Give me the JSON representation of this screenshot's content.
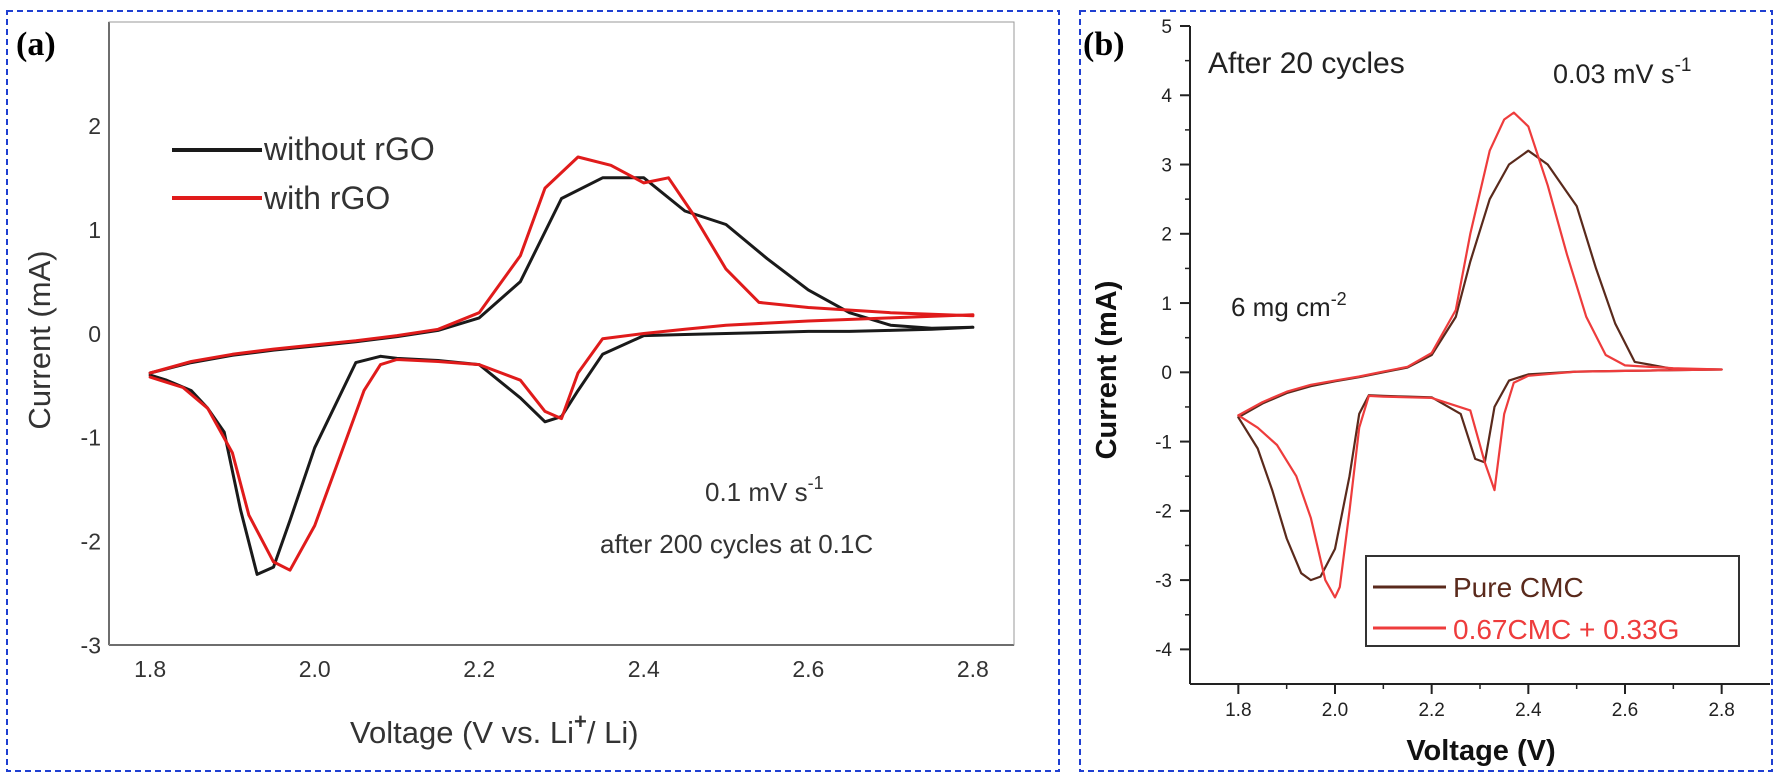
{
  "chart_data": [
    {
      "panel_label": "(a)",
      "type": "line",
      "xlabel_main": "Voltage (V vs. Li",
      "xlabel_sup": "+",
      "xlabel_tail": "/ Li)",
      "ylabel": "Current (mA)",
      "xlim": [
        1.75,
        2.85
      ],
      "ylim": [
        -3,
        3
      ],
      "xticks": [
        "1.8",
        "2.0",
        "2.2",
        "2.4",
        "2.6",
        "2.8"
      ],
      "yticks": [
        "-3",
        "-2",
        "-1",
        "0",
        "1",
        "2"
      ],
      "grid": false,
      "legend_position": "top-left",
      "annotations": {
        "rate_main": "0.1 mV s",
        "rate_sup": "-1",
        "cycles": "after 200 cycles at 0.1C"
      },
      "series": [
        {
          "name": "without rGO",
          "color": "#1a1a1a",
          "x": [
            1.8,
            1.85,
            1.9,
            1.95,
            2.0,
            2.05,
            2.1,
            2.15,
            2.2,
            2.25,
            2.3,
            2.35,
            2.4,
            2.45,
            2.5,
            2.55,
            2.6,
            2.65,
            2.7,
            2.75,
            2.8,
            2.8,
            2.75,
            2.7,
            2.65,
            2.6,
            2.55,
            2.5,
            2.45,
            2.4,
            2.35,
            2.32,
            2.3,
            2.28,
            2.25,
            2.2,
            2.15,
            2.1,
            2.08,
            2.05,
            2.0,
            1.97,
            1.95,
            1.93,
            1.91,
            1.89,
            1.87,
            1.85,
            1.82,
            1.8
          ],
          "y": [
            -0.38,
            -0.28,
            -0.21,
            -0.16,
            -0.12,
            -0.08,
            -0.03,
            0.03,
            0.15,
            0.5,
            1.3,
            1.5,
            1.5,
            1.18,
            1.05,
            0.72,
            0.42,
            0.2,
            0.08,
            0.05,
            0.06,
            0.06,
            0.04,
            0.03,
            0.02,
            0.02,
            0.01,
            0.0,
            -0.01,
            -0.02,
            -0.2,
            -0.55,
            -0.8,
            -0.85,
            -0.62,
            -0.3,
            -0.26,
            -0.24,
            -0.22,
            -0.28,
            -1.1,
            -1.8,
            -2.25,
            -2.32,
            -1.7,
            -0.95,
            -0.72,
            -0.55,
            -0.45,
            -0.4
          ]
        },
        {
          "name": "with rGO",
          "color": "#e01b1b",
          "x": [
            1.8,
            1.85,
            1.9,
            1.95,
            2.0,
            2.05,
            2.1,
            2.15,
            2.2,
            2.25,
            2.28,
            2.32,
            2.36,
            2.4,
            2.43,
            2.46,
            2.5,
            2.54,
            2.6,
            2.7,
            2.8,
            2.8,
            2.7,
            2.6,
            2.5,
            2.45,
            2.4,
            2.35,
            2.32,
            2.3,
            2.28,
            2.25,
            2.2,
            2.15,
            2.1,
            2.08,
            2.06,
            2.03,
            2.0,
            1.97,
            1.95,
            1.92,
            1.9,
            1.87,
            1.84,
            1.8
          ],
          "y": [
            -0.38,
            -0.27,
            -0.2,
            -0.15,
            -0.11,
            -0.07,
            -0.02,
            0.04,
            0.2,
            0.75,
            1.4,
            1.7,
            1.62,
            1.45,
            1.5,
            1.15,
            0.62,
            0.3,
            0.25,
            0.2,
            0.17,
            0.18,
            0.15,
            0.12,
            0.08,
            0.04,
            0.0,
            -0.05,
            -0.38,
            -0.82,
            -0.75,
            -0.45,
            -0.3,
            -0.27,
            -0.25,
            -0.3,
            -0.55,
            -1.2,
            -1.85,
            -2.28,
            -2.2,
            -1.75,
            -1.15,
            -0.72,
            -0.52,
            -0.42
          ]
        }
      ]
    },
    {
      "panel_label": "(b)",
      "type": "line",
      "xlabel": "Voltage (V)",
      "ylabel": "Current (mA)",
      "xlim": [
        1.7,
        2.9
      ],
      "ylim": [
        -4.5,
        5
      ],
      "xticks": [
        "1.8",
        "2.0",
        "2.2",
        "2.4",
        "2.6",
        "2.8"
      ],
      "yticks": [
        "-4",
        "-3",
        "-2",
        "-1",
        "0",
        "1",
        "2",
        "3",
        "4",
        "5"
      ],
      "grid": false,
      "legend_position": "bottom-right",
      "annotations": {
        "title": "After 20 cycles",
        "rate_main": "0.03 mV s",
        "rate_sup": "-1",
        "loading_main": "6 mg cm",
        "loading_sup": "-2"
      },
      "series": [
        {
          "name": "Pure CMC",
          "color": "#5a2a1c",
          "x": [
            1.8,
            1.85,
            1.9,
            1.95,
            2.0,
            2.05,
            2.1,
            2.15,
            2.2,
            2.25,
            2.28,
            2.32,
            2.36,
            2.4,
            2.44,
            2.48,
            2.5,
            2.54,
            2.58,
            2.62,
            2.7,
            2.8,
            2.8,
            2.7,
            2.6,
            2.5,
            2.45,
            2.4,
            2.36,
            2.33,
            2.31,
            2.29,
            2.26,
            2.2,
            2.15,
            2.1,
            2.07,
            2.05,
            2.03,
            2.0,
            1.97,
            1.95,
            1.93,
            1.9,
            1.87,
            1.84,
            1.8
          ],
          "y": [
            -0.65,
            -0.45,
            -0.3,
            -0.2,
            -0.13,
            -0.07,
            0.0,
            0.07,
            0.25,
            0.8,
            1.6,
            2.5,
            3.0,
            3.2,
            3.0,
            2.6,
            2.4,
            1.5,
            0.7,
            0.15,
            0.05,
            0.04,
            0.04,
            0.03,
            0.02,
            0.01,
            -0.01,
            -0.03,
            -0.12,
            -0.5,
            -1.3,
            -1.25,
            -0.6,
            -0.36,
            -0.35,
            -0.34,
            -0.33,
            -0.6,
            -1.5,
            -2.55,
            -2.95,
            -3.0,
            -2.9,
            -2.4,
            -1.7,
            -1.1,
            -0.65
          ]
        },
        {
          "name": "0.67CMC + 0.33G",
          "color": "#ee3c3c",
          "x": [
            1.8,
            1.85,
            1.9,
            1.95,
            2.0,
            2.05,
            2.1,
            2.15,
            2.2,
            2.25,
            2.28,
            2.32,
            2.35,
            2.37,
            2.4,
            2.44,
            2.48,
            2.52,
            2.56,
            2.6,
            2.7,
            2.8,
            2.8,
            2.7,
            2.6,
            2.5,
            2.45,
            2.4,
            2.37,
            2.35,
            2.33,
            2.31,
            2.28,
            2.2,
            2.15,
            2.1,
            2.07,
            2.05,
            2.03,
            2.01,
            2.0,
            1.98,
            1.95,
            1.92,
            1.88,
            1.84,
            1.8
          ],
          "y": [
            -0.62,
            -0.43,
            -0.28,
            -0.18,
            -0.12,
            -0.06,
            0.01,
            0.08,
            0.28,
            0.9,
            2.0,
            3.2,
            3.65,
            3.75,
            3.55,
            2.7,
            1.7,
            0.8,
            0.25,
            0.1,
            0.06,
            0.04,
            0.04,
            0.03,
            0.02,
            0.01,
            -0.02,
            -0.05,
            -0.15,
            -0.6,
            -1.7,
            -1.3,
            -0.55,
            -0.37,
            -0.36,
            -0.35,
            -0.34,
            -0.8,
            -2.0,
            -3.1,
            -3.25,
            -3.0,
            -2.1,
            -1.5,
            -1.05,
            -0.8,
            -0.62
          ]
        }
      ]
    }
  ]
}
